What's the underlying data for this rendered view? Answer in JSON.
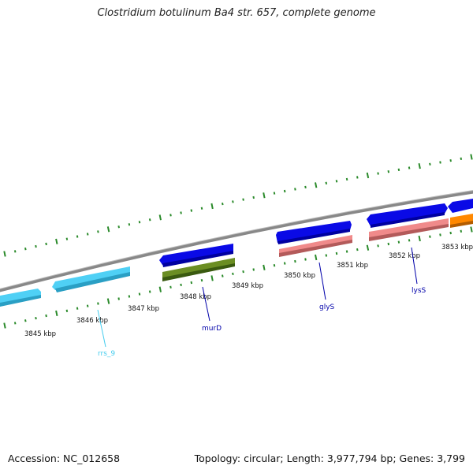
{
  "title": "Clostridium botulinum Ba4 str. 657, complete genome",
  "footer": {
    "accession": "Accession: NC_012658",
    "summary": "Topology: circular; Length: 3,977,794 bp; Genes: 3,799"
  },
  "scale_labels": [
    "3845 kbp",
    "3846 kbp",
    "3847 kbp",
    "3848 kbp",
    "3849 kbp",
    "3850 kbp",
    "3851 kbp",
    "3852 kbp",
    "3853 kbp"
  ],
  "gene_labels": [
    {
      "name": "rrs_9",
      "color": "#44ccee"
    },
    {
      "name": "murD",
      "color": "#0000aa"
    },
    {
      "name": "glyS",
      "color": "#0000aa"
    },
    {
      "name": "lysS",
      "color": "#0000aa"
    }
  ],
  "colors": {
    "backbone": "#888888",
    "tick": "#2a8a2a",
    "cds_forward": "#0a0ae6",
    "rrna": "#4fd0f5",
    "murD_block": "#6b8e23",
    "pink_block": "#f08a8a",
    "orange_block": "#ff8800"
  }
}
